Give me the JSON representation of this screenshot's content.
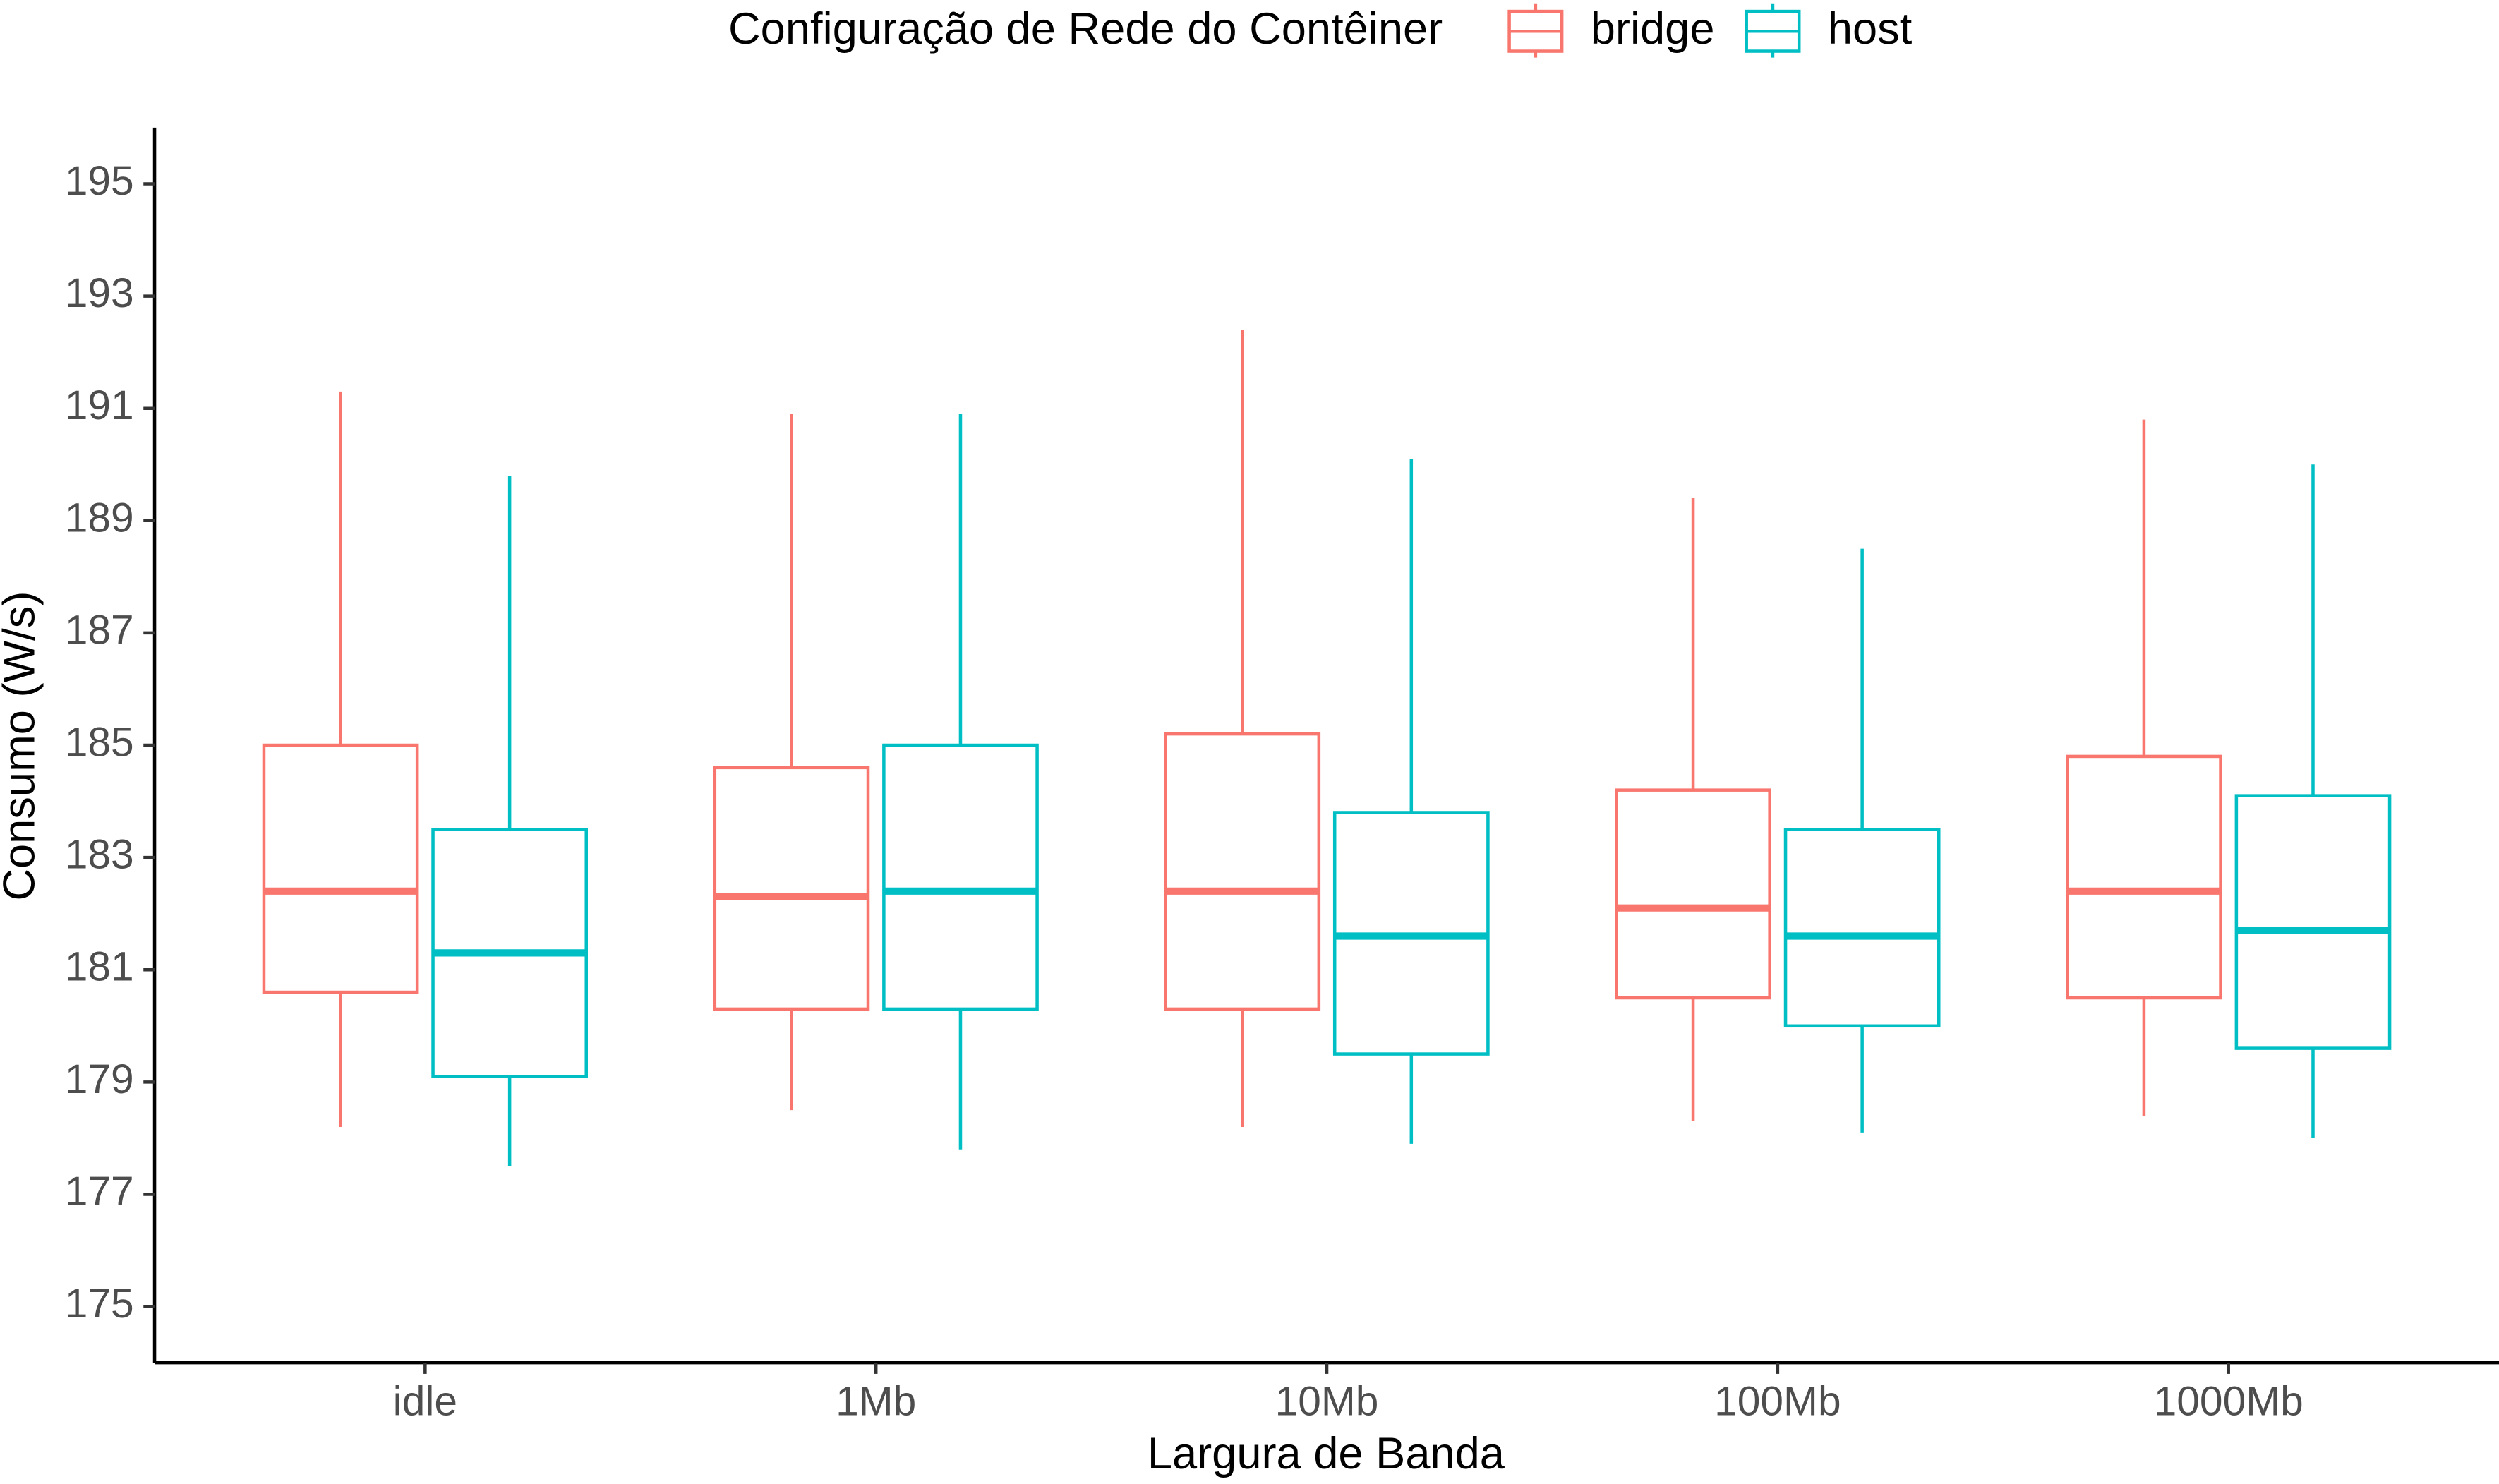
{
  "chart_data": {
    "type": "boxplot",
    "legend_title": "Configuração de Rede do Contêiner",
    "legend_position": "top",
    "x_label": "Largura de Banda",
    "y_label": "Consumo (W/s)",
    "categories": [
      "idle",
      "1Mb",
      "10Mb",
      "100Mb",
      "1000Mb"
    ],
    "ylim": [
      174,
      196
    ],
    "yticks": [
      175,
      177,
      179,
      181,
      183,
      185,
      187,
      189,
      191,
      193,
      195
    ],
    "grid": false,
    "series": [
      {
        "name": "bridge",
        "color": "#f8766d",
        "min": [
          178.2,
          178.5,
          178.2,
          178.3,
          178.4
        ],
        "q1": [
          180.6,
          180.3,
          180.3,
          180.5,
          180.5
        ],
        "median": [
          182.4,
          182.3,
          182.4,
          182.1,
          182.4
        ],
        "q3": [
          185.0,
          184.6,
          185.2,
          184.2,
          184.8
        ],
        "max": [
          191.3,
          190.9,
          192.4,
          189.4,
          190.8
        ]
      },
      {
        "name": "host",
        "color": "#00bfc4",
        "min": [
          177.5,
          177.8,
          177.9,
          178.1,
          178.0
        ],
        "q1": [
          179.1,
          180.3,
          179.5,
          180.0,
          179.6
        ],
        "median": [
          181.3,
          182.4,
          181.6,
          181.6,
          181.7
        ],
        "q3": [
          183.5,
          185.0,
          183.8,
          183.5,
          184.1
        ],
        "max": [
          189.8,
          190.9,
          190.1,
          188.5,
          190.0
        ]
      }
    ]
  }
}
